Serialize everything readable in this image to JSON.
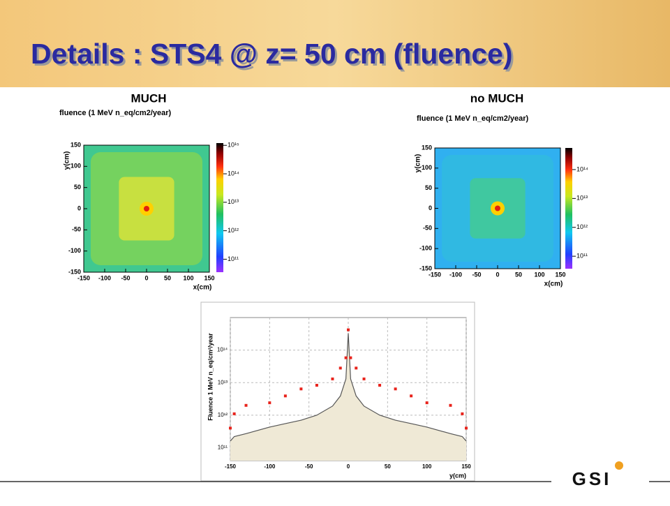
{
  "title": "Details : STS4 @ z= 50 cm (fluence)",
  "logo": "GSI",
  "panels": [
    {
      "heading": "MUCH",
      "title": "fluence (1 MeV n_eq/cm2/year)",
      "xlabel": "x(cm)",
      "ylabel": "y(cm)",
      "xlim": [
        -150,
        150
      ],
      "ylim": [
        -150,
        150
      ],
      "xticks": [
        -150,
        -100,
        -50,
        0,
        50,
        100,
        150
      ],
      "yticks": [
        -150,
        -100,
        -50,
        0,
        50,
        100,
        150
      ],
      "cbar_lim": [
        35000000000,
        1200000000000000
      ],
      "cbar_ticks": [
        {
          "value": 100000000000,
          "label": "10¹¹"
        },
        {
          "value": 1000000000000,
          "label": "10¹²"
        },
        {
          "value": 10000000000000,
          "label": "10¹³"
        },
        {
          "value": 100000000000000,
          "label": "10¹⁴"
        },
        {
          "value": 1000000000000000,
          "label": "10¹⁵"
        }
      ]
    },
    {
      "heading": "no MUCH",
      "title": "fluence (1 MeV n_eq/cm2/year)",
      "xlabel": "x(cm)",
      "ylabel": "y(cm)",
      "xlim": [
        -150,
        150
      ],
      "ylim": [
        -150,
        150
      ],
      "xticks": [
        -150,
        -100,
        -50,
        0,
        50,
        100,
        150
      ],
      "yticks": [
        -150,
        -100,
        -50,
        0,
        50,
        100,
        150
      ],
      "cbar_lim": [
        37000000000,
        560000000000000
      ],
      "cbar_ticks": [
        {
          "value": 100000000000,
          "label": "10¹¹"
        },
        {
          "value": 1000000000000,
          "label": "10¹²"
        },
        {
          "value": 10000000000000,
          "label": "10¹³"
        },
        {
          "value": 100000000000000,
          "label": "10¹⁴"
        }
      ]
    }
  ],
  "chart_data": {
    "type": "scatter",
    "xlabel": "y(cm)",
    "ylabel": "Fluence 1 MeV n_eq/cm²/year",
    "log_y": true,
    "grid": true,
    "x": [
      -150,
      -145,
      -130,
      -100,
      -80,
      -60,
      -40,
      -20,
      -10,
      -3,
      0,
      3,
      10,
      20,
      40,
      60,
      80,
      100,
      130,
      145,
      150
    ],
    "series": [
      {
        "color": "#e8231c",
        "values": [
          400000000000,
          1100000000000,
          2000000000000,
          2400000000000,
          3900000000000,
          6400000000000,
          8300000000000,
          13000000000000,
          28000000000000,
          58000000000000,
          420000000000000,
          58000000000000,
          28000000000000,
          13000000000000,
          8300000000000,
          6400000000000,
          3900000000000,
          2400000000000,
          2000000000000,
          1100000000000,
          400000000000
        ]
      },
      {
        "color": "#555555",
        "values": [
          160000000000,
          220000000000,
          270000000000,
          430000000000,
          550000000000,
          700000000000,
          1000000000000,
          1900000000000,
          3900000000000,
          13000000000000,
          330000000000000,
          13000000000000,
          3900000000000,
          1900000000000,
          1000000000000,
          700000000000,
          550000000000,
          430000000000,
          270000000000,
          220000000000,
          160000000000
        ]
      }
    ],
    "xlim": [
      -150,
      150
    ],
    "ylim": [
      40000000000,
      1000000000000000
    ],
    "xticks": [
      -150,
      -100,
      -50,
      0,
      50,
      100,
      150
    ],
    "yticks": [
      {
        "value": 100000000000,
        "label": "10¹¹"
      },
      {
        "value": 1000000000000,
        "label": "10¹²"
      },
      {
        "value": 10000000000000,
        "label": "10¹³"
      },
      {
        "value": 100000000000000,
        "label": "10¹⁴"
      }
    ]
  }
}
